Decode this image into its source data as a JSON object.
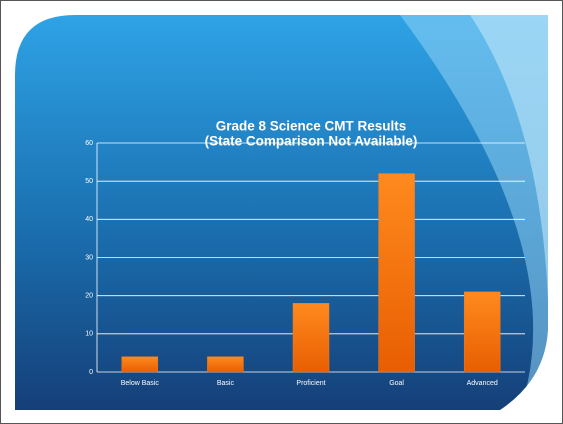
{
  "chart_data": {
    "type": "bar",
    "title": "Grade 8 Science CMT Results",
    "subtitle": "(State Comparison Not Available)",
    "categories": [
      "Below Basic",
      "Basic",
      "Proficient",
      "Goal",
      "Advanced"
    ],
    "values": [
      4,
      4,
      18,
      52,
      21
    ],
    "color": "#f87a12",
    "ylim": [
      0,
      60
    ],
    "yticks": [
      0,
      10,
      20,
      30,
      40,
      50,
      60
    ],
    "grid": true
  }
}
